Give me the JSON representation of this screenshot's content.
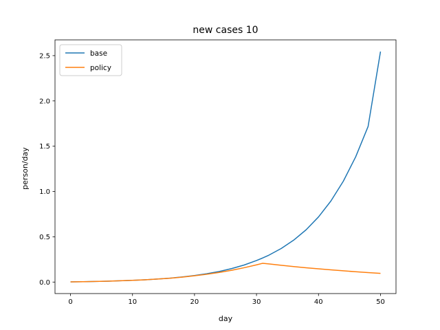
{
  "chart_data": {
    "type": "line",
    "title": "new cases 10",
    "xlabel": "day",
    "ylabel": "person/day",
    "xlim": [
      -2.5,
      52.5
    ],
    "ylim": [
      -0.127,
      2.674
    ],
    "xticks": [
      0,
      10,
      20,
      30,
      40,
      50
    ],
    "yticks": [
      0.0,
      0.5,
      1.0,
      1.5,
      2.0,
      2.5
    ],
    "xtick_labels": [
      "0",
      "10",
      "20",
      "30",
      "40",
      "50"
    ],
    "ytick_labels": [
      "0.0",
      "0.5",
      "1.0",
      "1.5",
      "2.0",
      "2.5"
    ],
    "legend_position": "top-left",
    "grid": false,
    "series": [
      {
        "name": "base",
        "color": "#1f77b4",
        "x": [
          0,
          2,
          4,
          6,
          8,
          10,
          12,
          14,
          16,
          18,
          20,
          22,
          24,
          26,
          28,
          30,
          31,
          32,
          34,
          36,
          38,
          40,
          42,
          44,
          46,
          48,
          50
        ],
        "y": [
          0.002,
          0.004,
          0.007,
          0.01,
          0.014,
          0.019,
          0.025,
          0.033,
          0.043,
          0.056,
          0.072,
          0.092,
          0.117,
          0.149,
          0.188,
          0.238,
          0.266,
          0.297,
          0.371,
          0.463,
          0.577,
          0.719,
          0.895,
          1.113,
          1.383,
          1.718,
          2.545
        ]
      },
      {
        "name": "policy",
        "color": "#ff7f0e",
        "x": [
          0,
          2,
          4,
          6,
          8,
          10,
          12,
          14,
          16,
          18,
          20,
          22,
          24,
          26,
          28,
          30,
          31,
          32,
          34,
          36,
          38,
          40,
          42,
          44,
          46,
          48,
          50
        ],
        "y": [
          0.002,
          0.004,
          0.007,
          0.01,
          0.014,
          0.019,
          0.025,
          0.033,
          0.042,
          0.054,
          0.069,
          0.086,
          0.106,
          0.13,
          0.158,
          0.19,
          0.207,
          0.2,
          0.185,
          0.171,
          0.158,
          0.146,
          0.135,
          0.124,
          0.114,
          0.105,
          0.096
        ]
      }
    ]
  }
}
